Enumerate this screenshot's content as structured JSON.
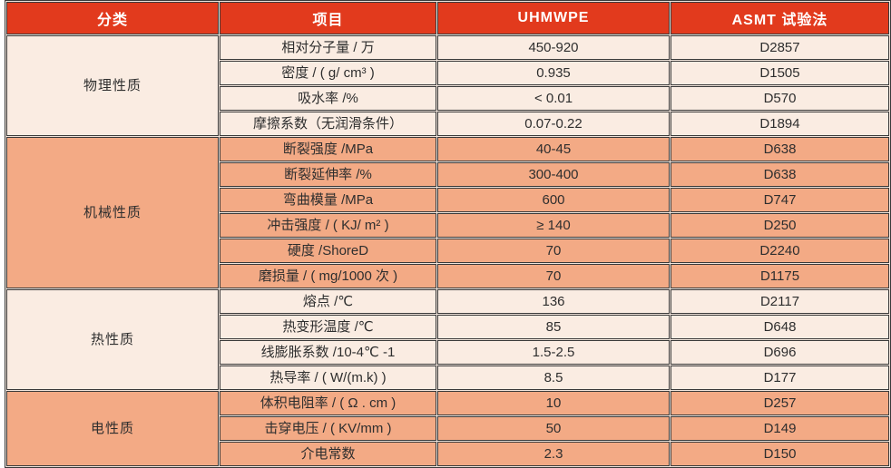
{
  "colors": {
    "header_bg": "#e23a1d",
    "section_light_bg": "#faece2",
    "section_dark_bg": "#f3aa85",
    "border": "#3a3a3a",
    "header_text": "#ffffff",
    "body_text": "#2e2e2e"
  },
  "chart_data": {
    "type": "table",
    "columns": [
      "分类",
      "项目",
      "UHMWPE",
      "ASMT 试验法"
    ],
    "sections": [
      {
        "category": "物理性质",
        "tone": "cream",
        "rows": [
          {
            "item": "相对分子量 / 万",
            "uhmwpe": "450-920",
            "astm": "D2857"
          },
          {
            "item": "密度 / ( g/ cm³ )",
            "uhmwpe": "0.935",
            "astm": "D1505"
          },
          {
            "item": "吸水率 /%",
            "uhmwpe": "< 0.01",
            "astm": "D570"
          },
          {
            "item": "摩擦系数（无润滑条件）",
            "uhmwpe": "0.07-0.22",
            "astm": "D1894"
          }
        ]
      },
      {
        "category": "机械性质",
        "tone": "salmon",
        "rows": [
          {
            "item": "断裂强度 /MPa",
            "uhmwpe": "40-45",
            "astm": "D638"
          },
          {
            "item": "断裂延伸率 /%",
            "uhmwpe": "300-400",
            "astm": "D638"
          },
          {
            "item": "弯曲模量 /MPa",
            "uhmwpe": "600",
            "astm": "D747"
          },
          {
            "item": "冲击强度 / ( KJ/ m² )",
            "uhmwpe": "≥ 140",
            "astm": "D250"
          },
          {
            "item": "硬度 /ShoreD",
            "uhmwpe": "70",
            "astm": "D2240"
          },
          {
            "item": "磨损量 / ( mg/1000 次 )",
            "uhmwpe": "70",
            "astm": "D1175"
          }
        ]
      },
      {
        "category": "热性质",
        "tone": "cream",
        "rows": [
          {
            "item": "熔点 /℃",
            "uhmwpe": "136",
            "astm": "D2117"
          },
          {
            "item": "热变形温度 /℃",
            "uhmwpe": "85",
            "astm": "D648"
          },
          {
            "item": "线膨胀系数 /10-4℃ -1",
            "uhmwpe": "1.5-2.5",
            "astm": "D696"
          },
          {
            "item": "热导率 / ( W/(m.k) )",
            "uhmwpe": "8.5",
            "astm": "D177"
          }
        ]
      },
      {
        "category": "电性质",
        "tone": "salmon",
        "rows": [
          {
            "item": "体积电阻率 / ( Ω . cm )",
            "uhmwpe": "10",
            "astm": "D257"
          },
          {
            "item": "击穿电压 / ( KV/mm )",
            "uhmwpe": "50",
            "astm": "D149"
          },
          {
            "item": "介电常数",
            "uhmwpe": "2.3",
            "astm": "D150"
          }
        ]
      }
    ]
  }
}
